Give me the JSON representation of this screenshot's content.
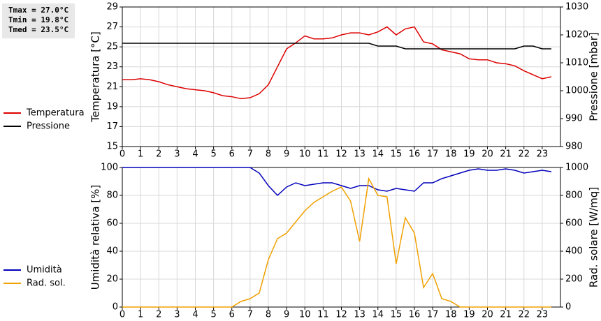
{
  "chart_data": [
    {
      "type": "line",
      "annotations": [
        "Tmax = 27.0°C",
        "Tmin = 19.8°C",
        "Tmed = 23.5°C"
      ],
      "ylabel": "Temperatura [°C]",
      "y2label": "Pressione [mbar]",
      "x": [
        0,
        0.5,
        1,
        1.5,
        2,
        2.5,
        3,
        3.5,
        4,
        4.5,
        5,
        5.5,
        6,
        6.5,
        7,
        7.5,
        8,
        8.5,
        9,
        9.5,
        10,
        10.5,
        11,
        11.5,
        12,
        12.5,
        13,
        13.5,
        14,
        14.5,
        15,
        15.5,
        16,
        16.5,
        17,
        17.5,
        18,
        18.5,
        19,
        19.5,
        20,
        20.5,
        21,
        21.5,
        22,
        22.5,
        23,
        23.5
      ],
      "xlim": [
        0,
        24
      ],
      "xticks": [
        0,
        1,
        2,
        3,
        4,
        5,
        6,
        7,
        8,
        9,
        10,
        11,
        12,
        13,
        14,
        15,
        16,
        17,
        18,
        19,
        20,
        21,
        22,
        23
      ],
      "ylim": [
        15,
        29
      ],
      "yticks": [
        15,
        17,
        19,
        21,
        23,
        25,
        27,
        29
      ],
      "y2lim": [
        980,
        1030
      ],
      "y2ticks": [
        980,
        990,
        1000,
        1010,
        1020,
        1030
      ],
      "grid": true,
      "series": [
        {
          "name": "Temperatura",
          "color": "#dd0000",
          "values": [
            21.7,
            21.7,
            21.8,
            21.7,
            21.5,
            21.2,
            21.0,
            20.8,
            20.7,
            20.6,
            20.4,
            20.1,
            20.0,
            19.8,
            19.9,
            20.3,
            21.2,
            23.0,
            24.8,
            25.4,
            26.1,
            25.8,
            25.8,
            25.9,
            26.2,
            26.4,
            26.4,
            26.2,
            26.5,
            27.0,
            26.2,
            26.8,
            27.0,
            25.5,
            25.3,
            24.7,
            24.5,
            24.3,
            23.8,
            23.7,
            23.7,
            23.4,
            23.3,
            23.1,
            22.6,
            22.2,
            21.8,
            22.0
          ]
        },
        {
          "name": "Pressione",
          "color": "#000000",
          "axis": "y2",
          "values": [
            1017,
            1017,
            1017,
            1017,
            1017,
            1017,
            1017,
            1017,
            1017,
            1017,
            1017,
            1017,
            1017,
            1017,
            1017,
            1017,
            1017,
            1017,
            1017,
            1017,
            1017,
            1017,
            1017,
            1017,
            1017,
            1017,
            1017,
            1017,
            1016,
            1016,
            1016,
            1015,
            1015,
            1015,
            1015,
            1015,
            1015,
            1015,
            1015,
            1015,
            1015,
            1015,
            1015,
            1015,
            1016,
            1016,
            1015,
            1015
          ]
        }
      ]
    },
    {
      "type": "line",
      "ylabel": "Umidità relativa [%]",
      "y2label": "Rad. solare [W/mq]",
      "x": [
        0,
        0.5,
        1,
        1.5,
        2,
        2.5,
        3,
        3.5,
        4,
        4.5,
        5,
        5.5,
        6,
        6.5,
        7,
        7.5,
        8,
        8.5,
        9,
        9.5,
        10,
        10.5,
        11,
        11.5,
        12,
        12.5,
        13,
        13.5,
        14,
        14.5,
        15,
        15.5,
        16,
        16.5,
        17,
        17.5,
        18,
        18.5,
        19,
        19.5,
        20,
        20.5,
        21,
        21.5,
        22,
        22.5,
        23,
        23.5
      ],
      "xlim": [
        0,
        24
      ],
      "xticks": [
        0,
        1,
        2,
        3,
        4,
        5,
        6,
        7,
        8,
        9,
        10,
        11,
        12,
        13,
        14,
        15,
        16,
        17,
        18,
        19,
        20,
        21,
        22,
        23
      ],
      "ylim": [
        0,
        100
      ],
      "yticks": [
        0,
        20,
        40,
        60,
        80,
        100
      ],
      "y2lim": [
        0,
        1000
      ],
      "y2ticks": [
        0,
        200,
        400,
        600,
        800,
        1000
      ],
      "grid": true,
      "series": [
        {
          "name": "Umidità",
          "color": "#0000bb",
          "values": [
            100,
            100,
            100,
            100,
            100,
            100,
            100,
            100,
            100,
            100,
            100,
            100,
            100,
            100,
            100,
            96,
            87,
            80,
            86,
            89,
            87,
            88,
            89,
            89,
            87,
            85,
            87,
            87,
            84,
            83,
            85,
            84,
            83,
            89,
            89,
            92,
            94,
            96,
            98,
            99,
            98,
            98,
            99,
            98,
            96,
            97,
            98,
            97
          ]
        },
        {
          "name": "Rad. sol.",
          "color": "#f0a000",
          "axis": "y2",
          "values": [
            0,
            0,
            0,
            0,
            0,
            0,
            0,
            0,
            0,
            0,
            0,
            0,
            0,
            40,
            60,
            100,
            340,
            490,
            530,
            610,
            690,
            750,
            790,
            830,
            860,
            760,
            470,
            920,
            800,
            790,
            310,
            640,
            530,
            140,
            240,
            60,
            40,
            0,
            0,
            0,
            0,
            0,
            0,
            0,
            0,
            0,
            0,
            0
          ]
        }
      ]
    }
  ]
}
